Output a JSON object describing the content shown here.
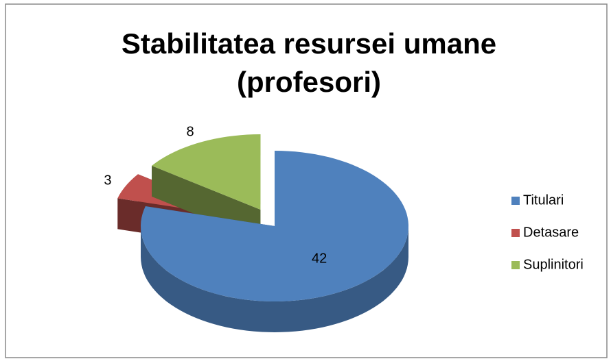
{
  "chart_data": {
    "type": "pie",
    "title": "Stabilitatea resursei umane (profesori)",
    "categories": [
      "Titulari",
      "Detasare",
      "Suplinitori"
    ],
    "values": [
      42,
      3,
      8
    ],
    "colors": [
      "#4f81bd",
      "#c0504d",
      "#9bbb59"
    ],
    "legend": "right"
  }
}
